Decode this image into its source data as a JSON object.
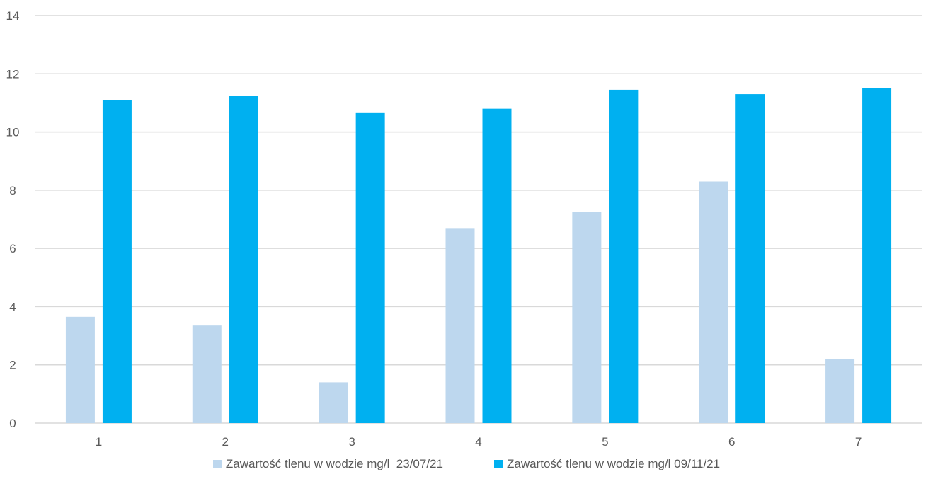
{
  "chart_data": {
    "type": "bar",
    "categories": [
      "1",
      "2",
      "3",
      "4",
      "5",
      "6",
      "7"
    ],
    "series": [
      {
        "name": "Zawartość tlenu w wodzie mg/l  23/07/21",
        "color": "#bdd7ee",
        "values": [
          3.65,
          3.35,
          1.4,
          6.7,
          7.25,
          8.3,
          2.2
        ]
      },
      {
        "name": "Zawartość tlenu w wodzie mg/l 09/11/21",
        "color": "#00b0f0",
        "values": [
          11.1,
          11.25,
          10.65,
          10.8,
          11.45,
          11.3,
          11.5
        ]
      }
    ],
    "ylim": [
      0,
      14
    ],
    "yticks": [
      0,
      2,
      4,
      6,
      8,
      10,
      12,
      14
    ],
    "grid": true,
    "legend_position": "bottom"
  }
}
